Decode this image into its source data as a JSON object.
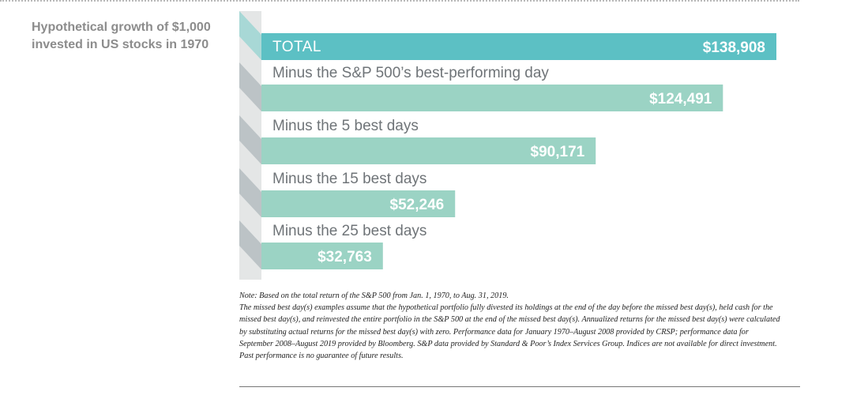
{
  "side_title": "Hypothetical growth of $1,000 invested in US stocks in 1970",
  "colors": {
    "total_bar": "#5cc0c4",
    "bar": "#9bd3c4",
    "spine_light": "#e4e6e6",
    "spine_dark": "#bcc3c6",
    "total_notch": "#a8d8d6"
  },
  "chart_data": {
    "type": "bar",
    "orientation": "horizontal",
    "title": "Hypothetical growth of $1,000 invested in US stocks in 1970",
    "categories": [
      "TOTAL",
      "Minus the S&P 500’s best-performing day",
      "Minus the 5 best days",
      "Minus the 15 best days",
      "Minus the 25 best days"
    ],
    "values": [
      138908,
      124491,
      90171,
      52246,
      32763
    ],
    "value_labels": [
      "$138,908",
      "$124,491",
      "$90,171",
      "$52,246",
      "$32,763"
    ],
    "xlim": [
      0,
      138908
    ],
    "grid": false,
    "legend": "none"
  },
  "note": {
    "line1": "Note: Based on the total return of the S&P 500 from Jan. 1, 1970, to Aug. 31, 2019.",
    "line2": "The missed best day(s) examples assume that the hypothetical portfolio fully divested its holdings at the end of the day before the missed best day(s), held cash for the missed best day(s), and reinvested the entire portfolio in the S&P 500 at the end of the missed best day(s).  Annualized returns for the missed best day(s) were calculated by substituting actual returns for the missed best day(s) with zero.  Performance data for January 1970–August 2008 provided by CRSP; performance data for September 2008–August 2019 provided by Bloomberg.  S&P data provided by Standard & Poor’s Index Services Group.  Indices are not available for direct investment. Past performance is no guarantee of future results."
  }
}
